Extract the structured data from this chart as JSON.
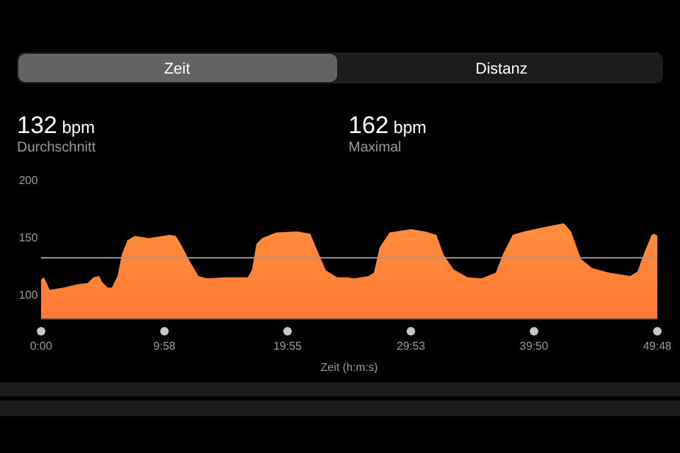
{
  "chart_data": {
    "type": "area",
    "xlabel": "Zeit (h:m:s)",
    "annotations": [
      "Zeit",
      "Distanz",
      "132 bpm",
      "Durchschnitt",
      "162 bpm",
      "Maximal"
    ],
    "x": [
      0,
      0.23,
      0.69,
      1.83,
      2.98,
      3.78,
      4.24,
      4.69,
      4.92,
      5.38,
      5.72,
      6.18,
      6.53,
      6.98,
      7.56,
      8.7,
      9.85,
      10.42,
      10.88,
      11.33,
      11.91,
      12.71,
      13.39,
      15,
      16.14,
      16.71,
      17.06,
      17.4,
      17.86,
      19,
      20.72,
      21.75,
      22.21,
      23.01,
      23.93,
      24.73,
      25.3,
      26.45,
      26.9,
      27.36,
      28.16,
      29.88,
      31.02,
      31.94,
      32.51,
      33.31,
      34.46,
      35.6,
      36.75,
      37.32,
      38.12,
      39.04,
      40.76,
      42.24,
      42.82,
      43.62,
      44.53,
      45.91,
      47.62,
      48.2,
      48.77,
      49.34,
      49.57,
      49.8
    ],
    "series": [
      {
        "color": "#ff7a35",
        "values": [
          113,
          115,
          104,
          106,
          109,
          110,
          115,
          116,
          111,
          106,
          106,
          116,
          135,
          147,
          151,
          149,
          151,
          152,
          151,
          143,
          131,
          116,
          114,
          115,
          115,
          115,
          122,
          144,
          149,
          154,
          155,
          153,
          141,
          121,
          115,
          115,
          114,
          116,
          119,
          141,
          154,
          157,
          155,
          152,
          135,
          122,
          115,
          114,
          119,
          135,
          152,
          155,
          159,
          162,
          155,
          131,
          123,
          119,
          116,
          120,
          137,
          152,
          153,
          151
        ]
      }
    ],
    "ylim": [
      79,
      200
    ],
    "yticks": [
      100,
      150,
      200
    ],
    "xlim": [
      0,
      49.8
    ],
    "xticks": [
      {
        "value": 0,
        "label": "0:00"
      },
      {
        "value": 9.967,
        "label": "9:58"
      },
      {
        "value": 19.917,
        "label": "19:55"
      },
      {
        "value": 29.883,
        "label": "29:53"
      },
      {
        "value": 39.833,
        "label": "39:50"
      },
      {
        "value": 49.8,
        "label": "49:48"
      }
    ],
    "ref_lines": [
      {
        "axis": "y",
        "value": 132,
        "color": "#9a9a9a"
      }
    ],
    "grid": false,
    "marker": "none"
  }
}
